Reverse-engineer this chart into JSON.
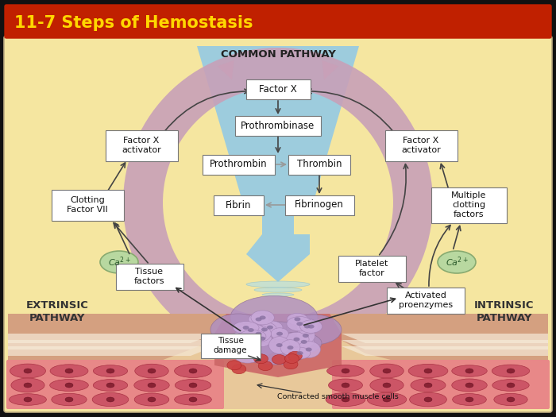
{
  "title": "11-7 Steps of Hemostasis",
  "title_bg": "#C02000",
  "title_color": "#FFD700",
  "bg_color": "#F5E6A0",
  "common_pathway_label": "COMMON PATHWAY",
  "extrinsic_label": "EXTRINSIC\nPATHWAY",
  "intrinsic_label": "INTRINSIC\nPATHWAY",
  "blue_funnel": "#8EC8E8",
  "blue_arrow_body": "#6AABD0",
  "pink_arc": "#C8A0B8",
  "light_pink_arc": "#DDB8CC",
  "box_bg": "#FFFFFF",
  "box_edge": "#888888",
  "ca_color": "#B8D8A0",
  "ca_edge": "#88AA70",
  "arrow_dark": "#444444",
  "arrow_gray": "#888888",
  "tissue_red": "#CC6677",
  "tissue_dark": "#AA4455",
  "skin_tan": "#E8C89A",
  "skin_stripe": "#F0D8B0",
  "vessel_wall": "#D4A080",
  "muscle_red": "#CC5555",
  "muscle_dark": "#883333",
  "platelet_cluster": "#B8A0C8",
  "platelet_cell": "#9888B8"
}
